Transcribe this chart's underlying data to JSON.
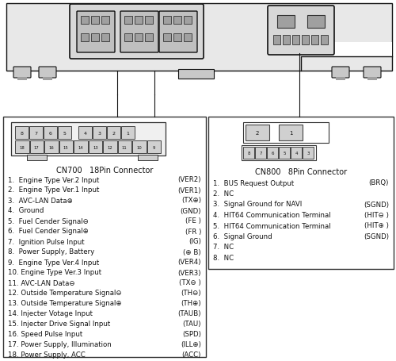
{
  "bg_color": "#ffffff",
  "cn700_title": "CN700   18Pin Connector",
  "cn700_pins_left": [
    "1.  Engine Type Ver.2 Input",
    "2.  Engine Type Ver.1 Input",
    "3.  AVC-LAN Data⊕",
    "4.  Ground",
    "5.  Fuel Cender Signal⊖",
    "6.  Fuel Cender Signal⊕",
    "7.  Ignition Pulse Input",
    "8.  Power Supply, Battery",
    "9.  Engine Type Ver.4 Input",
    "10. Engine Type Ver.3 Input",
    "11. AVC-LAN Data⊖",
    "12. Outside Temperature Signal⊖",
    "13. Outside Temperature Signal⊕",
    "14. Injecter Votage Input",
    "15. Injecter Drive Signal Input",
    "16. Speed Pulse Input",
    "17. Power Supply, Illumination",
    "18. Power Supply, ACC"
  ],
  "cn700_pins_right": [
    "(VER2)",
    "(VER1)",
    "(TX⊕)",
    "(GND)",
    "(FE )",
    "(FR )",
    "(IG)",
    "(⊕ B)",
    "(VER4)",
    "(VER3)",
    "(TX⊖ )",
    "(TH⊖)",
    "(TH⊕)",
    "(TAUB)",
    "(TAU)",
    "(SPD)",
    "(ILL⊕)",
    "(ACC)"
  ],
  "cn800_title": "CN800   8Pin Connector",
  "cn800_pins_left": [
    "1.  BUS Request Output",
    "2.  NC",
    "3.  Signal Ground for NAVI",
    "4.  HIT64 Communication Terminal",
    "5.  HIT64 Communication Terminal",
    "6.  Signal Ground",
    "7.  NC",
    "8.  NC"
  ],
  "cn800_pins_right": [
    "(BRQ)",
    "",
    "(SGND)",
    "(HIT⊖ )",
    "(HIT⊕ )",
    "(SGND)",
    "",
    ""
  ]
}
